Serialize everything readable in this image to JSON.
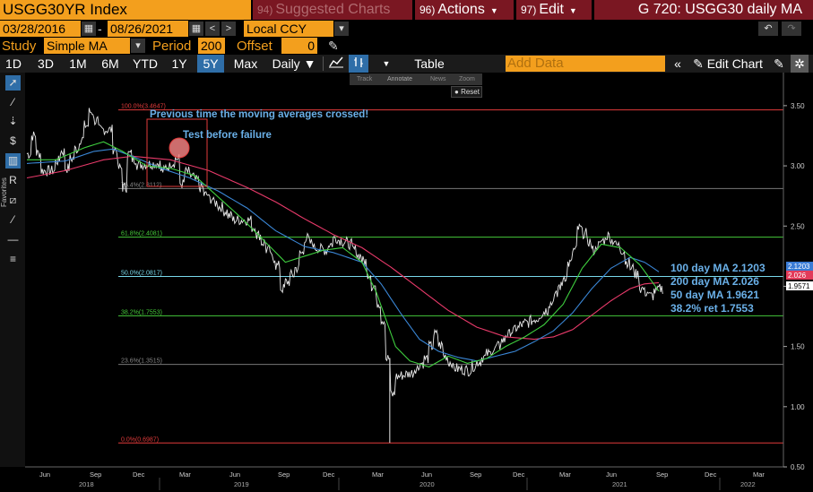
{
  "header": {
    "ticker": "USGG30YR Index",
    "suggested_num": "94)",
    "suggested": "Suggested Charts",
    "actions_num": "96)",
    "actions": "Actions",
    "edit_num": "97)",
    "edit": "Edit",
    "title": "G 720: USGG30 daily MA"
  },
  "dates": {
    "start": "03/28/2016",
    "end": "08/26/2021",
    "currency": "Local CCY"
  },
  "study": {
    "label": "Study",
    "value": "Simple MA",
    "period_label": "Period",
    "period": "200",
    "offset_label": "Offset",
    "offset": "0"
  },
  "toolbar": {
    "ranges": [
      "1D",
      "3D",
      "1M",
      "6M",
      "YTD",
      "1Y",
      "5Y",
      "Max"
    ],
    "active_range": "5Y",
    "frequency": "Daily",
    "table": "Table",
    "add_data": "Add Data",
    "edit_chart": "Edit Chart"
  },
  "floating": {
    "items": [
      "Track",
      "Annotate",
      "News",
      "Zoom"
    ],
    "reset": "Reset"
  },
  "side_labels": {
    "favorites": "Favorites"
  },
  "chart_data": {
    "type": "line",
    "ylim": [
      0.5,
      3.7
    ],
    "y_ticks": [
      "3.50",
      "3.00",
      "2.50",
      "2.00",
      "1.50",
      "1.00",
      "0.50"
    ],
    "x_month_labels": [
      "Jun",
      "Sep",
      "Dec",
      "Mar",
      "Jun",
      "Sep",
      "Dec",
      "Mar",
      "Jun",
      "Sep",
      "Dec",
      "Mar",
      "Jun",
      "Sep",
      "Dec",
      "Mar"
    ],
    "x_year_labels": [
      "2018",
      "2019",
      "2020",
      "2021",
      "2022"
    ],
    "fib_levels": [
      {
        "label": "100.0%(3.4647)",
        "value": 3.4647,
        "color": "#e23b3b"
      },
      {
        "label": "76.4%(2.8112)",
        "value": 2.8112,
        "color": "#777777"
      },
      {
        "label": "61.8%(2.4081)",
        "value": 2.4081,
        "color": "#45c83a"
      },
      {
        "label": "50.0%(2.0817)",
        "value": 2.0817,
        "color": "#78d8ea"
      },
      {
        "label": "38.2%(1.7553)",
        "value": 1.7553,
        "color": "#45c83a"
      },
      {
        "label": "23.6%(1.3515)",
        "value": 1.3515,
        "color": "#777777"
      },
      {
        "label": "0.0%(0.6987)",
        "value": 0.6987,
        "color": "#e23b3b"
      }
    ],
    "annotations": [
      {
        "text": "Previous time the moving averages crossed!"
      },
      {
        "text": "Test before failure"
      }
    ],
    "legend": [
      {
        "text": "100 day MA 2.1203"
      },
      {
        "text": "200 day MA 2.026"
      },
      {
        "text": "50 day MA 1.9621"
      },
      {
        "text": "38.2% ret 1.7553"
      }
    ],
    "last_values": [
      {
        "label": "2.1203",
        "value": 2.1203,
        "bg": "#3a7bd5"
      },
      {
        "label": "2.026",
        "value": 2.026,
        "bg": "#e23b5a"
      },
      {
        "label": "1.9571",
        "value": 1.9571,
        "bg": "#ffffff"
      }
    ],
    "price_keyframes": [
      [
        0,
        3.1
      ],
      [
        1,
        3.25
      ],
      [
        3,
        2.96
      ],
      [
        5,
        2.96
      ],
      [
        7,
        3.12
      ],
      [
        8,
        2.98
      ],
      [
        11,
        3.22
      ],
      [
        13,
        3.45
      ],
      [
        15,
        3.3
      ],
      [
        17,
        3.3
      ],
      [
        20,
        2.82
      ],
      [
        21,
        3.1
      ],
      [
        23,
        3.01
      ],
      [
        27,
        3.02
      ],
      [
        28,
        2.96
      ],
      [
        31,
        3.06
      ],
      [
        32,
        2.85
      ],
      [
        33,
        2.95
      ],
      [
        35,
        2.88
      ],
      [
        37,
        2.76
      ],
      [
        40,
        2.66
      ],
      [
        43,
        2.55
      ],
      [
        46,
        2.55
      ],
      [
        50,
        2.3
      ],
      [
        52,
        2.17
      ],
      [
        53,
        1.98
      ],
      [
        56,
        2.15
      ],
      [
        58,
        2.4
      ],
      [
        60,
        2.32
      ],
      [
        62,
        2.3
      ],
      [
        64,
        2.4
      ],
      [
        67,
        2.35
      ],
      [
        70,
        2.21
      ],
      [
        72,
        2.0
      ],
      [
        74,
        1.72
      ],
      [
        75,
        1.4
      ],
      [
        76,
        1.1
      ],
      [
        77,
        1.25
      ],
      [
        80,
        1.28
      ],
      [
        83,
        1.4
      ],
      [
        85,
        1.6
      ],
      [
        87,
        1.42
      ],
      [
        89,
        1.32
      ],
      [
        92,
        1.3
      ],
      [
        95,
        1.41
      ],
      [
        98,
        1.5
      ],
      [
        100,
        1.6
      ],
      [
        103,
        1.68
      ],
      [
        106,
        1.73
      ],
      [
        108,
        1.8
      ],
      [
        110,
        1.92
      ],
      [
        112,
        2.08
      ],
      [
        114,
        2.3
      ],
      [
        115,
        2.48
      ],
      [
        116,
        2.44
      ],
      [
        118,
        2.3
      ],
      [
        121,
        2.42
      ],
      [
        124,
        2.3
      ],
      [
        125,
        2.2
      ],
      [
        127,
        2.1
      ],
      [
        128,
        1.98
      ],
      [
        130,
        1.92
      ],
      [
        131,
        1.96
      ],
      [
        132,
        1.98
      ]
    ],
    "ma50_keyframes": [
      [
        0,
        3.05
      ],
      [
        6,
        3.05
      ],
      [
        12,
        3.15
      ],
      [
        16,
        3.2
      ],
      [
        20,
        3.12
      ],
      [
        25,
        3.0
      ],
      [
        30,
        2.98
      ],
      [
        35,
        2.92
      ],
      [
        40,
        2.74
      ],
      [
        45,
        2.56
      ],
      [
        50,
        2.36
      ],
      [
        54,
        2.2
      ],
      [
        58,
        2.25
      ],
      [
        62,
        2.3
      ],
      [
        66,
        2.32
      ],
      [
        70,
        2.2
      ],
      [
        73,
        1.95
      ],
      [
        77,
        1.5
      ],
      [
        80,
        1.38
      ],
      [
        84,
        1.33
      ],
      [
        88,
        1.42
      ],
      [
        92,
        1.36
      ],
      [
        96,
        1.4
      ],
      [
        100,
        1.5
      ],
      [
        104,
        1.58
      ],
      [
        108,
        1.68
      ],
      [
        112,
        1.85
      ],
      [
        116,
        2.15
      ],
      [
        120,
        2.35
      ],
      [
        124,
        2.32
      ],
      [
        128,
        2.18
      ],
      [
        132,
        1.96
      ]
    ],
    "ma100_keyframes": [
      [
        0,
        3.02
      ],
      [
        8,
        3.04
      ],
      [
        14,
        3.12
      ],
      [
        18,
        3.14
      ],
      [
        22,
        3.08
      ],
      [
        28,
        2.98
      ],
      [
        34,
        2.9
      ],
      [
        40,
        2.79
      ],
      [
        46,
        2.65
      ],
      [
        52,
        2.46
      ],
      [
        58,
        2.33
      ],
      [
        64,
        2.28
      ],
      [
        70,
        2.2
      ],
      [
        74,
        2.02
      ],
      [
        78,
        1.78
      ],
      [
        82,
        1.56
      ],
      [
        86,
        1.46
      ],
      [
        90,
        1.41
      ],
      [
        94,
        1.38
      ],
      [
        98,
        1.42
      ],
      [
        102,
        1.46
      ],
      [
        106,
        1.54
      ],
      [
        110,
        1.63
      ],
      [
        114,
        1.78
      ],
      [
        118,
        1.98
      ],
      [
        122,
        2.15
      ],
      [
        126,
        2.24
      ],
      [
        129,
        2.2
      ],
      [
        132,
        2.12
      ]
    ],
    "ma200_keyframes": [
      [
        0,
        2.9
      ],
      [
        8,
        2.96
      ],
      [
        16,
        3.05
      ],
      [
        22,
        3.08
      ],
      [
        30,
        3.05
      ],
      [
        38,
        2.96
      ],
      [
        46,
        2.82
      ],
      [
        52,
        2.7
      ],
      [
        58,
        2.56
      ],
      [
        64,
        2.43
      ],
      [
        70,
        2.32
      ],
      [
        76,
        2.16
      ],
      [
        82,
        1.98
      ],
      [
        88,
        1.8
      ],
      [
        94,
        1.66
      ],
      [
        100,
        1.58
      ],
      [
        106,
        1.56
      ],
      [
        110,
        1.58
      ],
      [
        114,
        1.64
      ],
      [
        118,
        1.76
      ],
      [
        122,
        1.88
      ],
      [
        126,
        1.98
      ],
      [
        129,
        2.02
      ],
      [
        132,
        2.03
      ]
    ]
  }
}
